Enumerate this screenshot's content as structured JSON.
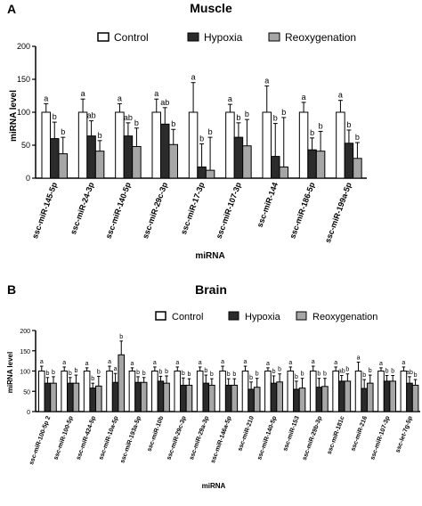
{
  "colors": {
    "control": "#ffffff",
    "hypoxia": "#2b2b2b",
    "reoxygenation": "#a6a6a6",
    "stroke": "#000000"
  },
  "chart_data": [
    {
      "panel": "A",
      "type": "bar",
      "title": "Muscle",
      "xlabel": "miRNA",
      "ylabel": "miRNA level",
      "ylim": [
        0,
        200
      ],
      "yticks": [
        "0",
        "50",
        "100",
        "150",
        "200"
      ],
      "legend_position": "top",
      "categories": [
        "ssc-miR-145-5p",
        "ssc-miR-24-3p",
        "ssc-miR-140-5p",
        "ssc-miR-29c-3p",
        "ssc-miR-17-3p",
        "ssc-miR-107-3p",
        "ssc-miR-144",
        "ssc-miR-186-5p",
        "ssc-miR-199a-5p"
      ],
      "series": [
        {
          "name": "Control",
          "color": "#ffffff",
          "values": [
            100,
            100,
            100,
            100,
            100,
            100,
            100,
            100,
            100
          ],
          "errors": [
            13,
            20,
            13,
            20,
            45,
            12,
            40,
            15,
            18
          ],
          "sig": [
            "a",
            "a",
            "a",
            "a",
            "a",
            "a",
            "a",
            "a",
            "a"
          ]
        },
        {
          "name": "Hypoxia",
          "color": "#2b2b2b",
          "values": [
            60,
            64,
            64,
            82,
            17,
            62,
            33,
            43,
            53
          ],
          "errors": [
            25,
            23,
            20,
            25,
            35,
            22,
            50,
            18,
            20
          ],
          "sig": [
            "b",
            "ab",
            "ab",
            "ab",
            "b",
            "b",
            "b",
            "b",
            "b"
          ]
        },
        {
          "name": "Reoxygenation",
          "color": "#a6a6a6",
          "values": [
            37,
            41,
            48,
            51,
            12,
            49,
            17,
            41,
            30
          ],
          "errors": [
            25,
            16,
            28,
            23,
            50,
            40,
            75,
            30,
            24
          ],
          "sig": [
            "b",
            "b",
            "b",
            "b",
            "b",
            "b",
            "b",
            "b",
            "b"
          ]
        }
      ]
    },
    {
      "panel": "B",
      "type": "bar",
      "title": "Brain",
      "xlabel": "miRNA",
      "ylabel": "miRNA level",
      "ylim": [
        0,
        200
      ],
      "yticks": [
        "0",
        "50",
        "100",
        "150",
        "200"
      ],
      "legend_position": "top",
      "categories": [
        "ssc-miR-100-5p 2",
        "ssc-miR-100-5p",
        "ssc-miR-424-5p",
        "ssc-miR-10a-5p",
        "ssc-miR-193a-5p",
        "ssc-miR-10b",
        "ssc-miR-29c-3p",
        "ssc-miR-29a-3p",
        "ssc-miR-146a-5p",
        "ssc-miR-210",
        "ssc-miR-140-5p",
        "ssc-miR-153",
        "ssc-miR-29b-3p",
        "ssc-miR-181c",
        "ssc-miR-216",
        "ssc-miR-107-3p",
        "ssc-let-7g-5p"
      ],
      "series": [
        {
          "name": "Control",
          "color": "#ffffff",
          "values": [
            100,
            100,
            100,
            100,
            100,
            100,
            100,
            100,
            100,
            100,
            100,
            100,
            100,
            100,
            100,
            100,
            100
          ],
          "errors": [
            12,
            10,
            8,
            12,
            8,
            10,
            10,
            10,
            12,
            12,
            8,
            10,
            12,
            10,
            22,
            8,
            10
          ],
          "sig": [
            "a",
            "a",
            "a",
            "a",
            "a",
            "a",
            "a",
            "a",
            "a",
            "a",
            "a",
            "a",
            "a",
            "a",
            "a",
            "a",
            "a"
          ]
        },
        {
          "name": "Hypoxia",
          "color": "#2b2b2b",
          "values": [
            70,
            70,
            58,
            72,
            72,
            75,
            65,
            70,
            65,
            55,
            70,
            55,
            60,
            75,
            57,
            75,
            70
          ],
          "errors": [
            14,
            14,
            12,
            22,
            14,
            12,
            18,
            20,
            16,
            18,
            18,
            20,
            22,
            14,
            22,
            14,
            16
          ],
          "sig": [
            "b",
            "b",
            "b",
            "a",
            "b",
            "b",
            "b",
            "b",
            "b",
            "b",
            "b",
            "b",
            "b",
            "ab",
            "b",
            "b",
            "ab"
          ]
        },
        {
          "name": "Reoxygenation",
          "color": "#a6a6a6",
          "values": [
            70,
            70,
            63,
            140,
            72,
            70,
            65,
            65,
            65,
            60,
            73,
            58,
            62,
            75,
            70,
            75,
            65
          ],
          "errors": [
            16,
            20,
            24,
            34,
            12,
            18,
            16,
            16,
            16,
            22,
            20,
            24,
            20,
            18,
            20,
            14,
            14
          ],
          "sig": [
            "b",
            "b",
            "b",
            "b",
            "b",
            "b",
            "b",
            "b",
            "b",
            "b",
            "b",
            "b",
            "b",
            "b",
            "b",
            "b",
            "b"
          ]
        }
      ]
    }
  ]
}
